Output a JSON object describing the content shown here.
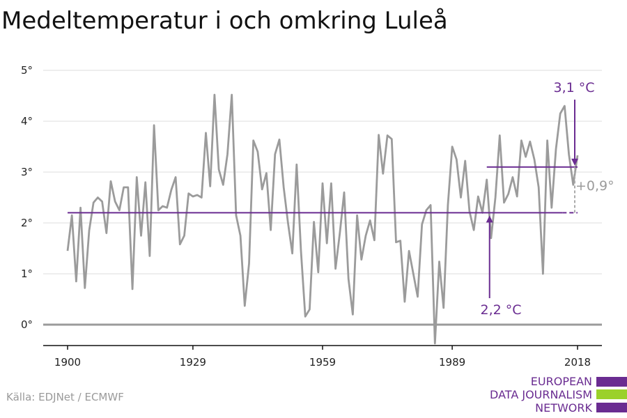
{
  "title": "Medeltemperatur i och omkring Luleå",
  "source": "Källa: EDJNet / ECMWF",
  "logo": {
    "lines": [
      "EUROPEAN",
      "DATA JOURNALISM",
      "NETWORK"
    ],
    "colors": [
      "#6a2c91",
      "#9bd12a",
      "#6a2c91"
    ]
  },
  "colors": {
    "series": "#9b9b9b",
    "accent": "#6a2c91",
    "zero_line": "#9b9b9b",
    "grid": "#dddddd"
  },
  "chart_data": {
    "type": "line",
    "title": "Medeltemperatur i och omkring Luleå",
    "xlabel": "",
    "ylabel": "",
    "xlim": [
      1900,
      2018
    ],
    "ylim": [
      -0.4,
      5
    ],
    "x_ticks": [
      1900,
      1929,
      1959,
      1989,
      2018
    ],
    "y_ticks": [
      0,
      1,
      2,
      3,
      4,
      5
    ],
    "y_tick_labels": [
      "0°",
      "1°",
      "2°",
      "3°",
      "4°",
      "5°"
    ],
    "grid": true,
    "series": [
      {
        "name": "",
        "x": [
          1900,
          1901,
          1902,
          1903,
          1904,
          1905,
          1906,
          1907,
          1908,
          1909,
          1910,
          1911,
          1912,
          1913,
          1914,
          1915,
          1916,
          1917,
          1918,
          1919,
          1920,
          1921,
          1922,
          1923,
          1924,
          1925,
          1926,
          1927,
          1928,
          1929,
          1930,
          1931,
          1932,
          1933,
          1934,
          1935,
          1936,
          1937,
          1938,
          1939,
          1940,
          1941,
          1942,
          1943,
          1944,
          1945,
          1946,
          1947,
          1948,
          1949,
          1950,
          1951,
          1952,
          1953,
          1954,
          1955,
          1956,
          1957,
          1958,
          1959,
          1960,
          1961,
          1962,
          1963,
          1964,
          1965,
          1966,
          1967,
          1968,
          1969,
          1970,
          1971,
          1972,
          1973,
          1974,
          1975,
          1976,
          1977,
          1978,
          1979,
          1980,
          1981,
          1982,
          1983,
          1984,
          1985,
          1986,
          1987,
          1988,
          1989,
          1990,
          1991,
          1992,
          1993,
          1994,
          1995,
          1996,
          1997,
          1998,
          1999,
          2000,
          2001,
          2002,
          2003,
          2004,
          2005,
          2006,
          2007,
          2008,
          2009,
          2010,
          2011,
          2012,
          2013,
          2014,
          2015,
          2016,
          2017,
          2018
        ],
        "values": [
          1.45,
          2.15,
          0.85,
          2.3,
          0.72,
          1.85,
          2.4,
          2.5,
          2.42,
          1.8,
          2.82,
          2.42,
          2.25,
          2.7,
          2.7,
          0.7,
          2.9,
          1.75,
          2.8,
          1.35,
          3.92,
          2.25,
          2.33,
          2.3,
          2.65,
          2.9,
          1.58,
          1.75,
          2.58,
          2.52,
          2.55,
          2.5,
          3.77,
          2.72,
          4.52,
          3.05,
          2.75,
          3.35,
          4.52,
          2.15,
          1.75,
          0.37,
          1.2,
          3.62,
          3.4,
          2.66,
          2.98,
          1.86,
          3.35,
          3.64,
          2.7,
          2.0,
          1.4,
          3.15,
          1.45,
          0.16,
          0.3,
          2.02,
          1.03,
          2.78,
          1.6,
          2.78,
          1.1,
          1.8,
          2.6,
          0.9,
          0.2,
          2.15,
          1.28,
          1.75,
          2.05,
          1.66,
          3.73,
          2.97,
          3.72,
          3.65,
          1.62,
          1.65,
          0.45,
          1.45,
          1.0,
          0.55,
          1.97,
          2.25,
          2.35,
          -0.37,
          1.24,
          0.33,
          2.35,
          3.5,
          3.25,
          2.5,
          3.22,
          2.23,
          1.86,
          2.52,
          2.2,
          2.85,
          1.7,
          2.5,
          3.72,
          2.4,
          2.57,
          2.9,
          2.52,
          3.62,
          3.3,
          3.6,
          3.25,
          2.7,
          1.0,
          3.62,
          2.3,
          3.45,
          4.15,
          4.3,
          3.35,
          2.75,
          3.33
        ]
      }
    ],
    "annotations": [
      {
        "text": "3,1 °C",
        "x": 2018,
        "y": 3.1,
        "baseline_x_start": 1997,
        "baseline_x_end": 2018
      },
      {
        "text": "2,2 °C",
        "x": 1997,
        "y": 2.2,
        "baseline_x_start": 1900,
        "baseline_x_end": 2018
      },
      {
        "text": "+0,9°",
        "x": 2018,
        "y": 2.65
      }
    ]
  }
}
